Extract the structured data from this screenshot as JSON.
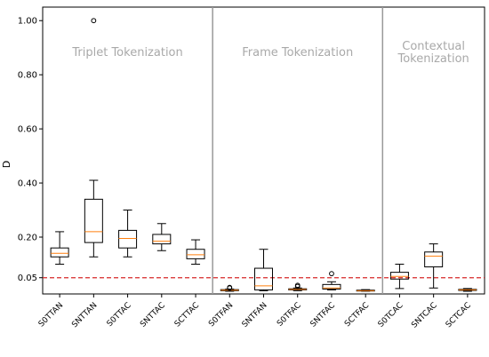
{
  "chart_data": {
    "type": "box",
    "ylabel": "D",
    "ylim": [
      -0.01,
      1.05
    ],
    "yticks": [
      {
        "value": 0.05,
        "label": "0.05"
      },
      {
        "value": 0.2,
        "label": "0.20"
      },
      {
        "value": 0.4,
        "label": "0.40"
      },
      {
        "value": 0.6,
        "label": "0.60"
      },
      {
        "value": 0.8,
        "label": "0.80"
      },
      {
        "value": 1.0,
        "label": "1.00"
      }
    ],
    "reference_line": {
      "value": 0.05,
      "color": "#d62728",
      "style": "dashed"
    },
    "sections": [
      {
        "label_lines": [
          "Triplet Tokenization"
        ],
        "start_index": 0,
        "end_index": 4
      },
      {
        "label_lines": [
          "Frame Tokenization"
        ],
        "start_index": 5,
        "end_index": 9
      },
      {
        "label_lines": [
          "Contextual",
          "Tokenization"
        ],
        "start_index": 10,
        "end_index": 12
      }
    ],
    "categories": [
      "S0TTAN",
      "SNTTAN",
      "S0TTAC",
      "SNTTAC",
      "SCTTAC",
      "S0TFAN",
      "SNTFAN",
      "S0TFAC",
      "SNTFAC",
      "SCTFAC",
      "S0TCAC",
      "SNTCAC",
      "SCTCAC"
    ],
    "boxes": [
      {
        "whislo": 0.1,
        "q1": 0.127,
        "med": 0.14,
        "q3": 0.16,
        "whishi": 0.22,
        "fliers": []
      },
      {
        "whislo": 0.127,
        "q1": 0.18,
        "med": 0.22,
        "q3": 0.34,
        "whishi": 0.41,
        "fliers": [
          1.0
        ]
      },
      {
        "whislo": 0.127,
        "q1": 0.16,
        "med": 0.195,
        "q3": 0.225,
        "whishi": 0.3,
        "fliers": []
      },
      {
        "whislo": 0.15,
        "q1": 0.175,
        "med": 0.185,
        "q3": 0.21,
        "whishi": 0.25,
        "fliers": []
      },
      {
        "whislo": 0.1,
        "q1": 0.12,
        "med": 0.135,
        "q3": 0.155,
        "whishi": 0.19,
        "fliers": []
      },
      {
        "whislo": 0.0,
        "q1": 0.002,
        "med": 0.004,
        "q3": 0.006,
        "whishi": 0.008,
        "fliers": [
          0.012,
          0.014
        ]
      },
      {
        "whislo": 0.002,
        "q1": 0.005,
        "med": 0.02,
        "q3": 0.085,
        "whishi": 0.155,
        "fliers": []
      },
      {
        "whislo": 0.002,
        "q1": 0.005,
        "med": 0.007,
        "q3": 0.009,
        "whishi": 0.012,
        "fliers": [
          0.018,
          0.022
        ]
      },
      {
        "whislo": 0.005,
        "q1": 0.008,
        "med": 0.012,
        "q3": 0.025,
        "whishi": 0.035,
        "fliers": [
          0.065
        ]
      },
      {
        "whislo": 0.0,
        "q1": 0.001,
        "med": 0.002,
        "q3": 0.004,
        "whishi": 0.006,
        "fliers": []
      },
      {
        "whislo": 0.01,
        "q1": 0.045,
        "med": 0.055,
        "q3": 0.07,
        "whishi": 0.1,
        "fliers": []
      },
      {
        "whislo": 0.012,
        "q1": 0.09,
        "med": 0.13,
        "q3": 0.145,
        "whishi": 0.175,
        "fliers": []
      },
      {
        "whislo": 0.0,
        "q1": 0.003,
        "med": 0.005,
        "q3": 0.007,
        "whishi": 0.01,
        "fliers": []
      }
    ],
    "colors": {
      "box": "#000000",
      "median": "#ff7f0e",
      "separator": "#999999",
      "reference": "#d62728",
      "section_text": "#a9a9a9"
    },
    "grid": false
  }
}
